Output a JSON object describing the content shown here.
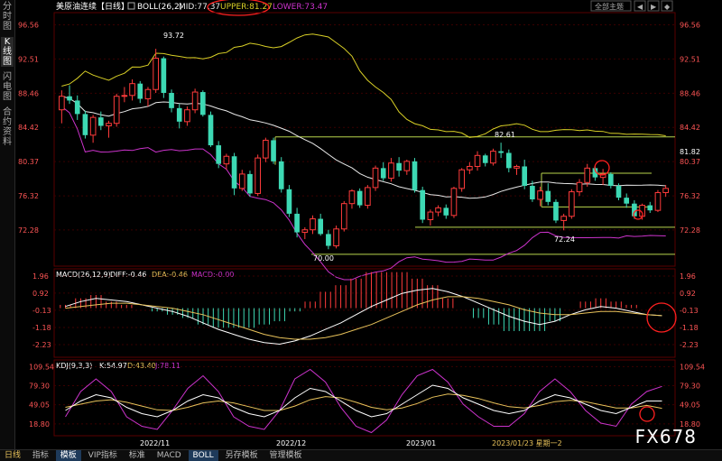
{
  "sidebar": {
    "tabs": [
      "分时图",
      "K线图",
      "闪电图",
      "合约资料"
    ],
    "active": 1
  },
  "header": {
    "title": "美原油连续【日线】",
    "boll": "BOLL(26,2)",
    "mid": "MID:77.37",
    "upper": "UPPER:81.27",
    "lower": "LOWER:73.47"
  },
  "toolbar": {
    "scheme": "全部主题",
    "nav": [
      "◀",
      "▶",
      "◆"
    ]
  },
  "price_panel": {
    "y_ticks": [
      "96.56",
      "92.51",
      "88.46",
      "84.42",
      "80.37",
      "76.32",
      "72.28"
    ],
    "right_extra": "81.82",
    "annotations": {
      "high": "93.72",
      "low": "70.00",
      "peak2": "82.61",
      "low2": "72.24"
    }
  },
  "macd_panel": {
    "label": "MACD(26,12,9)",
    "diff": "DIFF:-0.46",
    "dea": "DEA:-0.46",
    "macd": "MACD:-0.00",
    "y_ticks": [
      "1.96",
      "0.92",
      "-0.13",
      "-1.18",
      "-2.23"
    ]
  },
  "kdj_panel": {
    "label": "KDJ(9,3,3)",
    "k": "K:54.97",
    "d": "D:43.40",
    "j": "J:78.11",
    "y_ticks": [
      "109.54",
      "79.30",
      "49.05",
      "18.80"
    ]
  },
  "x_labels": [
    "2022/11",
    "2022/12",
    "2023/01",
    "2023/01/23 星期一2"
  ],
  "bottom_bar": {
    "period": "日线",
    "tabs": [
      "指标",
      "模板",
      "VIP指标",
      "标准",
      "MACD",
      "BOLL",
      "另存模板",
      "管理模板"
    ],
    "active": [
      1,
      5
    ]
  },
  "watermark": "FX678",
  "colors": {
    "up": "#ff3b3b",
    "down": "#3dd9b4",
    "mid": "#e8e8e8",
    "upper": "#d8cf26",
    "lower": "#cc33cc",
    "macd_diff": "#ffffff",
    "macd_dea": "#e8c25a",
    "k": "#ffffff",
    "d": "#e8c25a",
    "j": "#cc33cc",
    "hline": "#b8d44c",
    "grid": "#3a0000",
    "annotation": "#ff2020"
  },
  "chart_data": {
    "type": "candlestick",
    "price_range": [
      68,
      98
    ],
    "candles": [
      [
        86.5,
        88.8,
        84.9,
        88.1
      ],
      [
        88.1,
        89.4,
        87.2,
        87.6
      ],
      [
        87.6,
        88.2,
        85.3,
        86.0
      ],
      [
        86.0,
        86.4,
        83.1,
        83.5
      ],
      [
        83.5,
        85.9,
        82.6,
        85.6
      ],
      [
        85.6,
        86.3,
        84.1,
        84.6
      ],
      [
        84.6,
        85.2,
        83.2,
        84.9
      ],
      [
        84.9,
        88.4,
        84.5,
        88.1
      ],
      [
        88.1,
        89.2,
        87.4,
        88.2
      ],
      [
        88.2,
        90.1,
        87.6,
        89.6
      ],
      [
        89.6,
        89.9,
        87.3,
        87.8
      ],
      [
        87.8,
        89.2,
        86.9,
        88.9
      ],
      [
        88.9,
        93.72,
        88.5,
        92.6
      ],
      [
        92.6,
        92.8,
        87.9,
        88.5
      ],
      [
        88.5,
        88.9,
        86.2,
        86.7
      ],
      [
        86.7,
        87.2,
        84.3,
        85.1
      ],
      [
        85.1,
        86.9,
        84.6,
        86.5
      ],
      [
        86.5,
        89.0,
        86.1,
        88.6
      ],
      [
        88.6,
        88.8,
        85.7,
        85.9
      ],
      [
        85.9,
        86.3,
        82.1,
        82.3
      ],
      [
        82.3,
        82.8,
        79.6,
        80.1
      ],
      [
        80.1,
        81.3,
        79.4,
        81.0
      ],
      [
        81.0,
        81.4,
        76.4,
        77.2
      ],
      [
        77.2,
        79.4,
        76.9,
        78.9
      ],
      [
        78.9,
        79.3,
        76.2,
        76.6
      ],
      [
        76.6,
        81.2,
        76.3,
        80.8
      ],
      [
        80.8,
        83.2,
        80.3,
        82.9
      ],
      [
        82.9,
        83.2,
        80.1,
        80.4
      ],
      [
        80.4,
        80.9,
        76.7,
        77.1
      ],
      [
        77.1,
        77.6,
        73.8,
        74.2
      ],
      [
        74.2,
        74.9,
        71.4,
        72.0
      ],
      [
        72.0,
        72.6,
        71.2,
        72.3
      ],
      [
        72.3,
        74.0,
        71.8,
        73.6
      ],
      [
        73.6,
        74.2,
        71.6,
        71.8
      ],
      [
        71.8,
        72.3,
        70.0,
        70.4
      ],
      [
        70.4,
        72.8,
        70.1,
        72.4
      ],
      [
        72.4,
        75.7,
        72.1,
        75.4
      ],
      [
        75.4,
        77.1,
        74.8,
        76.9
      ],
      [
        76.9,
        77.2,
        74.9,
        75.2
      ],
      [
        75.2,
        77.6,
        74.8,
        77.3
      ],
      [
        77.3,
        79.9,
        76.9,
        79.6
      ],
      [
        79.6,
        80.3,
        78.1,
        78.4
      ],
      [
        78.4,
        80.8,
        78.0,
        80.2
      ],
      [
        80.2,
        80.9,
        78.6,
        79.3
      ],
      [
        79.3,
        80.6,
        78.8,
        80.4
      ],
      [
        80.4,
        80.8,
        76.7,
        77.0
      ],
      [
        77.0,
        77.4,
        73.1,
        73.5
      ],
      [
        73.5,
        74.7,
        72.8,
        74.4
      ],
      [
        74.4,
        75.2,
        73.9,
        74.9
      ],
      [
        74.9,
        75.3,
        73.6,
        74.0
      ],
      [
        74.0,
        77.4,
        73.7,
        77.2
      ],
      [
        77.2,
        79.6,
        76.8,
        79.4
      ],
      [
        79.4,
        80.3,
        78.9,
        79.8
      ],
      [
        79.8,
        81.6,
        79.3,
        81.1
      ],
      [
        81.1,
        81.3,
        79.8,
        80.2
      ],
      [
        80.2,
        81.9,
        79.9,
        81.6
      ],
      [
        81.6,
        82.61,
        80.8,
        81.4
      ],
      [
        81.4,
        81.8,
        79.1,
        79.6
      ],
      [
        79.6,
        80.0,
        78.8,
        79.8
      ],
      [
        79.8,
        80.6,
        77.1,
        77.5
      ],
      [
        77.5,
        78.1,
        75.6,
        75.9
      ],
      [
        75.9,
        77.4,
        75.1,
        76.9
      ],
      [
        76.9,
        77.8,
        75.2,
        75.6
      ],
      [
        75.6,
        75.9,
        73.1,
        73.4
      ],
      [
        73.4,
        74.2,
        72.24,
        73.9
      ],
      [
        73.9,
        77.1,
        73.6,
        76.8
      ],
      [
        76.8,
        78.3,
        76.3,
        77.9
      ],
      [
        77.9,
        80.1,
        77.4,
        79.6
      ],
      [
        79.6,
        79.8,
        78.1,
        78.5
      ],
      [
        78.5,
        79.5,
        77.6,
        78.9
      ],
      [
        78.9,
        79.1,
        77.2,
        77.5
      ],
      [
        77.5,
        77.8,
        75.8,
        76.1
      ],
      [
        76.1,
        76.6,
        74.9,
        75.4
      ],
      [
        75.4,
        75.8,
        73.6,
        73.9
      ],
      [
        73.9,
        75.4,
        73.5,
        75.2
      ],
      [
        75.2,
        75.6,
        74.3,
        74.6
      ],
      [
        74.6,
        77.0,
        74.4,
        76.7
      ],
      [
        76.7,
        77.6,
        76.2,
        77.2
      ]
    ],
    "macd": {
      "diff": [
        0.1,
        0.4,
        0.6,
        0.5,
        0.4,
        0.2,
        0.0,
        -0.2,
        -0.5,
        -0.9,
        -1.3,
        -1.6,
        -1.9,
        -2.1,
        -2.2,
        -2.0,
        -1.7,
        -1.3,
        -0.9,
        -0.4,
        0.1,
        0.5,
        0.9,
        1.1,
        1.2,
        1.0,
        0.7,
        0.3,
        -0.1,
        -0.5,
        -0.8,
        -1.0,
        -0.8,
        -0.4,
        -0.1,
        0.1,
        0.0,
        -0.2,
        -0.4,
        -0.46
      ],
      "dea": [
        0.0,
        0.1,
        0.2,
        0.3,
        0.3,
        0.2,
        0.1,
        0.0,
        -0.2,
        -0.4,
        -0.7,
        -1.0,
        -1.3,
        -1.6,
        -1.8,
        -1.9,
        -1.9,
        -1.8,
        -1.6,
        -1.3,
        -1.0,
        -0.6,
        -0.2,
        0.2,
        0.5,
        0.7,
        0.7,
        0.6,
        0.4,
        0.2,
        -0.1,
        -0.3,
        -0.4,
        -0.4,
        -0.3,
        -0.2,
        -0.2,
        -0.3,
        -0.4,
        -0.46
      ]
    },
    "kdj": {
      "k": [
        40,
        55,
        65,
        60,
        45,
        35,
        30,
        40,
        55,
        65,
        60,
        45,
        35,
        30,
        40,
        60,
        75,
        70,
        55,
        40,
        30,
        35,
        50,
        65,
        80,
        75,
        60,
        50,
        40,
        35,
        40,
        55,
        65,
        60,
        50,
        40,
        35,
        45,
        55,
        54.97
      ],
      "d": [
        45,
        50,
        55,
        57,
        53,
        47,
        41,
        40,
        45,
        52,
        55,
        52,
        46,
        40,
        40,
        47,
        57,
        62,
        60,
        53,
        45,
        41,
        44,
        51,
        61,
        66,
        64,
        59,
        52,
        46,
        44,
        48,
        54,
        56,
        54,
        49,
        44,
        44,
        48,
        43.4
      ],
      "j": [
        30,
        70,
        90,
        70,
        30,
        15,
        10,
        40,
        75,
        95,
        70,
        30,
        15,
        10,
        40,
        90,
        105,
        85,
        45,
        15,
        5,
        25,
        65,
        95,
        105,
        85,
        50,
        30,
        15,
        15,
        35,
        70,
        90,
        70,
        40,
        20,
        15,
        50,
        70,
        78.11
      ]
    }
  }
}
